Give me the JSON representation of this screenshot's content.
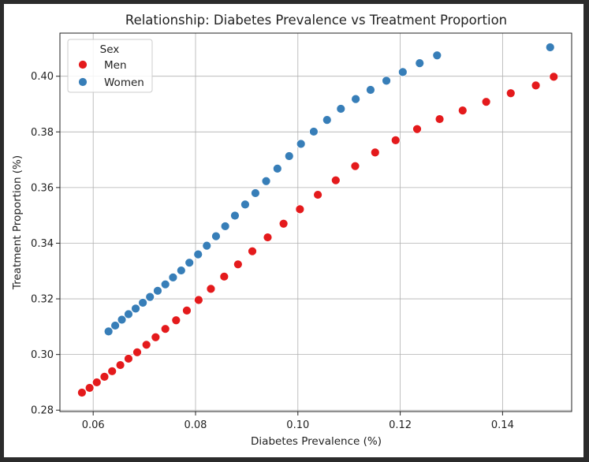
{
  "chart_data": {
    "type": "scatter",
    "title": "Relationship: Diabetes Prevalence vs Treatment Proportion",
    "xlabel": "Diabetes Prevalence (%)",
    "ylabel": "Treatment Proportion (%)",
    "xlim": [
      0.0535,
      0.1535
    ],
    "ylim": [
      0.2795,
      0.4155
    ],
    "x_ticks": [
      0.06,
      0.08,
      0.1,
      0.12,
      0.14
    ],
    "x_tick_labels": [
      "0.06",
      "0.08",
      "0.10",
      "0.12",
      "0.14"
    ],
    "y_ticks": [
      0.28,
      0.3,
      0.32,
      0.34,
      0.36,
      0.38,
      0.4
    ],
    "y_tick_labels": [
      "0.28",
      "0.30",
      "0.32",
      "0.34",
      "0.36",
      "0.38",
      "0.40"
    ],
    "grid": true,
    "legend": {
      "title": "Sex",
      "placement": "top-left"
    },
    "series": [
      {
        "name": "Men",
        "color": "#e41a1c",
        "points": [
          [
            0.0578,
            0.2863
          ],
          [
            0.0593,
            0.288
          ],
          [
            0.0607,
            0.29
          ],
          [
            0.0622,
            0.292
          ],
          [
            0.0637,
            0.294
          ],
          [
            0.0653,
            0.2962
          ],
          [
            0.0669,
            0.2985
          ],
          [
            0.0686,
            0.3008
          ],
          [
            0.0704,
            0.3035
          ],
          [
            0.0722,
            0.3062
          ],
          [
            0.0741,
            0.3092
          ],
          [
            0.0762,
            0.3123
          ],
          [
            0.0783,
            0.3158
          ],
          [
            0.0806,
            0.3196
          ],
          [
            0.083,
            0.3236
          ],
          [
            0.0856,
            0.328
          ],
          [
            0.0883,
            0.3324
          ],
          [
            0.0911,
            0.3371
          ],
          [
            0.0941,
            0.3421
          ],
          [
            0.0972,
            0.347
          ],
          [
            0.1004,
            0.3522
          ],
          [
            0.1039,
            0.3574
          ],
          [
            0.1074,
            0.3626
          ],
          [
            0.1112,
            0.3677
          ],
          [
            0.1151,
            0.3726
          ],
          [
            0.1191,
            0.377
          ],
          [
            0.1233,
            0.381
          ],
          [
            0.1277,
            0.3846
          ],
          [
            0.1322,
            0.3877
          ],
          [
            0.1368,
            0.3908
          ],
          [
            0.1416,
            0.3939
          ],
          [
            0.1465,
            0.3967
          ],
          [
            0.15,
            0.3998
          ]
        ]
      },
      {
        "name": "Women",
        "color": "#377eb8",
        "points": [
          [
            0.063,
            0.3083
          ],
          [
            0.0643,
            0.3104
          ],
          [
            0.0656,
            0.3125
          ],
          [
            0.0669,
            0.3145
          ],
          [
            0.0683,
            0.3165
          ],
          [
            0.0697,
            0.3186
          ],
          [
            0.0711,
            0.3207
          ],
          [
            0.0726,
            0.3229
          ],
          [
            0.0741,
            0.3252
          ],
          [
            0.0756,
            0.3277
          ],
          [
            0.0772,
            0.3302
          ],
          [
            0.0788,
            0.333
          ],
          [
            0.0805,
            0.336
          ],
          [
            0.0822,
            0.3391
          ],
          [
            0.084,
            0.3425
          ],
          [
            0.0858,
            0.3461
          ],
          [
            0.0877,
            0.3499
          ],
          [
            0.0897,
            0.3539
          ],
          [
            0.0917,
            0.358
          ],
          [
            0.0938,
            0.3623
          ],
          [
            0.096,
            0.3668
          ],
          [
            0.0983,
            0.3713
          ],
          [
            0.1006,
            0.3757
          ],
          [
            0.1031,
            0.3801
          ],
          [
            0.1057,
            0.3843
          ],
          [
            0.1084,
            0.3883
          ],
          [
            0.1113,
            0.3918
          ],
          [
            0.1142,
            0.3951
          ],
          [
            0.1173,
            0.3984
          ],
          [
            0.1205,
            0.4015
          ],
          [
            0.1238,
            0.4047
          ],
          [
            0.1272,
            0.4075
          ],
          [
            0.1493,
            0.4104
          ]
        ]
      }
    ]
  }
}
